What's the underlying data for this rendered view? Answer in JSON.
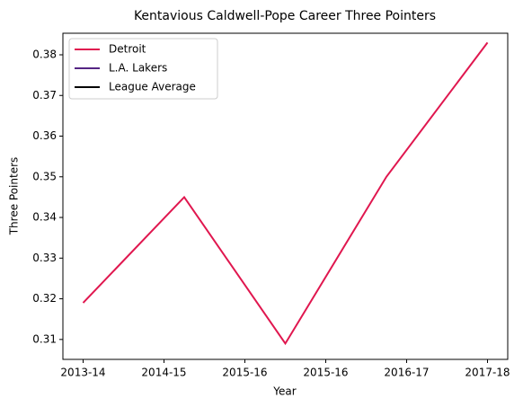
{
  "chart_data": {
    "type": "line",
    "title": "Kentavious Caldwell-Pope Career Three Pointers",
    "xlabel": "Year",
    "ylabel": "Three Pointers",
    "x": [
      0,
      1,
      2,
      3,
      4
    ],
    "series": [
      {
        "name": "Detroit",
        "color": "#e0174f",
        "values": [
          0.319,
          0.345,
          0.309,
          0.35,
          0.383
        ]
      }
    ],
    "legend_only": [
      {
        "name": "L.A. Lakers",
        "color": "#552583"
      },
      {
        "name": "League Average",
        "color": "#000000"
      }
    ],
    "xlim": [
      -0.2,
      4.2
    ],
    "xticks": [
      {
        "value": 0,
        "label": "2013-14"
      },
      {
        "value": 0.8,
        "label": "2014-15"
      },
      {
        "value": 1.6,
        "label": "2015-16"
      },
      {
        "value": 2.4,
        "label": "2015-16"
      },
      {
        "value": 3.2,
        "label": "2016-17"
      },
      {
        "value": 4,
        "label": "2017-18"
      }
    ],
    "ylim": [
      0.3051,
      0.3853
    ],
    "yticks": [
      0.31,
      0.32,
      0.33,
      0.34,
      0.35,
      0.36,
      0.37,
      0.38
    ],
    "legend": "upper left"
  }
}
